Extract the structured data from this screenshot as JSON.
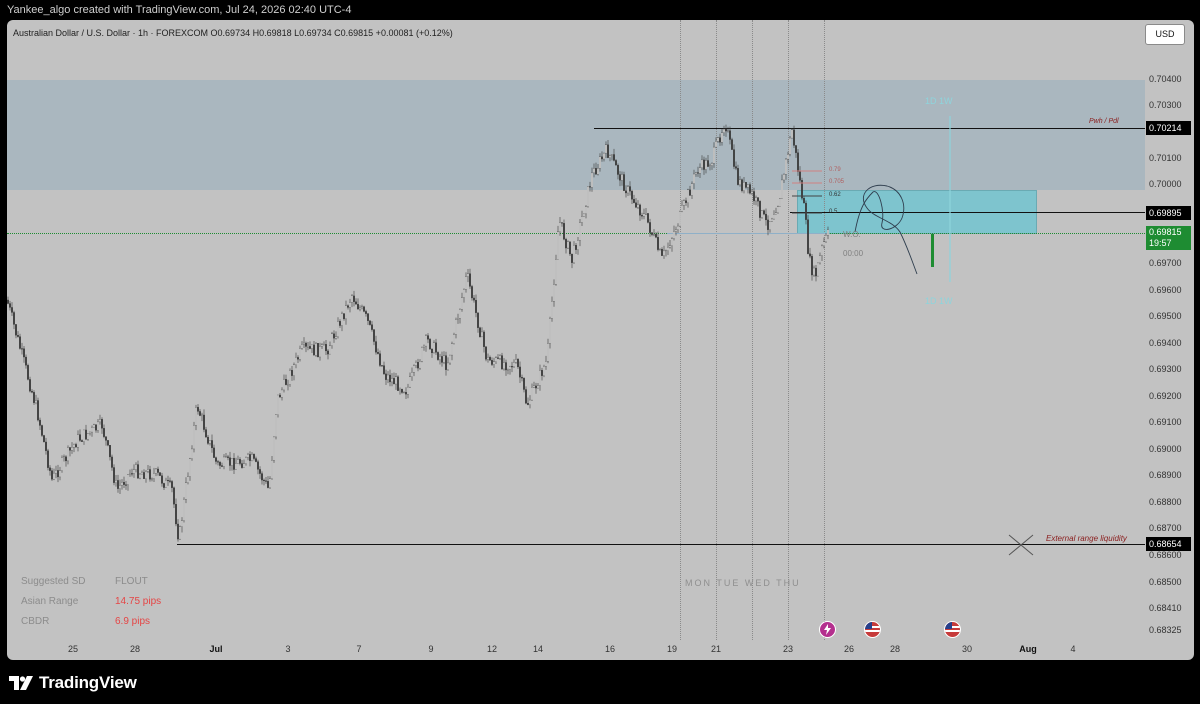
{
  "header": {
    "credit": "Yankee_algo created with TradingView.com, Jul 24, 2026 02:40 UTC-4"
  },
  "chart": {
    "symbol_line": "Australian Dollar / U.S. Dollar · 1h · FOREXCOM  O0.69734  H0.69818  L0.69734  C0.69815  +0.00081 (+0.12%)",
    "currency_button": "USD",
    "price_ticks": [
      "0.70400",
      "0.70300",
      "0.70100",
      "0.70000",
      "0.69700",
      "0.69600",
      "0.69500",
      "0.69400",
      "0.69300",
      "0.69200",
      "0.69100",
      "0.69000",
      "0.68900",
      "0.68800",
      "0.68700",
      "0.68600",
      "0.68500",
      "0.68410",
      "0.68325"
    ],
    "price_badges": {
      "pwh": "0.70214",
      "mid": "0.69895",
      "current": "0.69815",
      "countdown": "19:57",
      "low": "0.68654"
    },
    "time_ticks": [
      {
        "label": "25",
        "bold": false
      },
      {
        "label": "28",
        "bold": false
      },
      {
        "label": "Jul",
        "bold": true
      },
      {
        "label": "3",
        "bold": false
      },
      {
        "label": "7",
        "bold": false
      },
      {
        "label": "9",
        "bold": false
      },
      {
        "label": "12",
        "bold": false
      },
      {
        "label": "14",
        "bold": false
      },
      {
        "label": "16",
        "bold": false
      },
      {
        "label": "19",
        "bold": false
      },
      {
        "label": "21",
        "bold": false
      },
      {
        "label": "23",
        "bold": false
      },
      {
        "label": "26",
        "bold": false
      },
      {
        "label": "28",
        "bold": false
      },
      {
        "label": "30",
        "bold": false
      },
      {
        "label": "Aug",
        "bold": true
      },
      {
        "label": "4",
        "bold": false
      }
    ],
    "annotations": {
      "pwh": "Pwh / Pdl",
      "erl": "External range liquidity",
      "days": "MON  TUE  WED  THU",
      "wo": "W.O.",
      "wo_time": "00:00",
      "tf_top": "1D  1W",
      "tf_bottom": "1D  1W",
      "fib": [
        "0.79",
        "0.705",
        "0.62",
        "0.5"
      ]
    },
    "stats": [
      {
        "label": "Suggested SD",
        "value": "FLOUT",
        "tone": "grey"
      },
      {
        "label": "Asian Range",
        "value": "14.75 pips",
        "tone": "red"
      },
      {
        "label": "CBDR",
        "value": "6.9 pips",
        "tone": "red"
      }
    ],
    "colors": {
      "background": "#c2c2c2",
      "premium_zone": "#aab7bf",
      "fvg": "#7ec4ce",
      "current_price": "#1e8c32",
      "candle": "#3a3a3a",
      "range_label": "#8b2020",
      "tf_label": "#8ed4dc"
    }
  },
  "footer": {
    "brand": "TradingView"
  }
}
